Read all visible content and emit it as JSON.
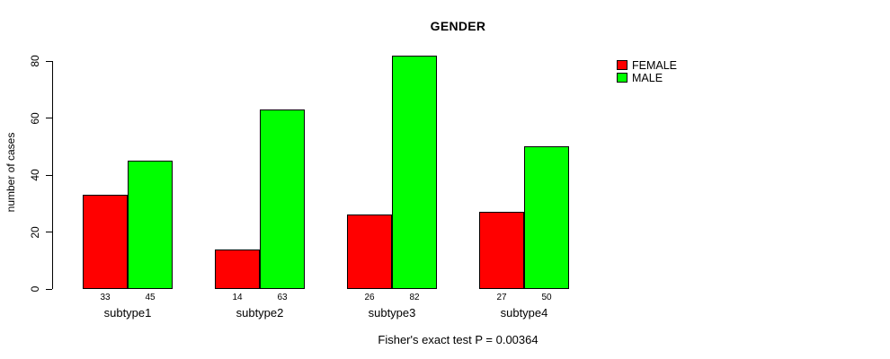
{
  "chart_data": {
    "type": "bar",
    "title": "GENDER",
    "xlabel": "",
    "ylabel": "number of cases",
    "categories": [
      "subtype1",
      "subtype2",
      "subtype3",
      "subtype4"
    ],
    "series": [
      {
        "name": "FEMALE",
        "color": "#ff0000",
        "values": [
          33,
          14,
          26,
          27
        ]
      },
      {
        "name": "MALE",
        "color": "#00ff00",
        "values": [
          45,
          63,
          82,
          50
        ]
      }
    ],
    "yticks": [
      0,
      20,
      40,
      60,
      80
    ],
    "ylim": [
      0,
      80
    ],
    "bar_value_labels": [
      [
        "33",
        "45"
      ],
      [
        "14",
        "63"
      ],
      [
        "26",
        "82"
      ],
      [
        "27",
        "50"
      ]
    ],
    "annotation": "Fisher's exact test P = 0.00364",
    "legend_position": "right",
    "grid": false
  },
  "colors": {
    "female": "#ff0000",
    "male": "#00ff00",
    "axis": "#000000",
    "background": "#ffffff"
  }
}
